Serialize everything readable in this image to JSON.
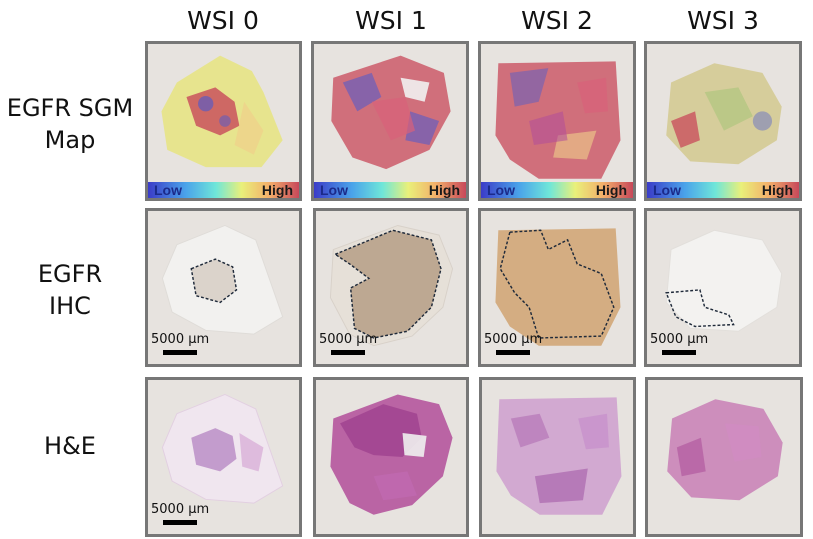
{
  "columns": [
    "WSI 0",
    "WSI 1",
    "WSI 2",
    "WSI 3"
  ],
  "rows": [
    {
      "label_lines": [
        "EGFR SGM",
        "Map"
      ]
    },
    {
      "label_lines": [
        "EGFR",
        "IHC"
      ]
    },
    {
      "label_lines": [
        "H&E"
      ]
    }
  ],
  "colorbar": {
    "low": "Low",
    "high": "High"
  },
  "scalebar": {
    "text": "5000 µm"
  },
  "colors": {
    "panel_bg": "#e7e3df",
    "panel_border": "#777777",
    "ihc_stain": "#c59a6a",
    "he_stain": "#b56ab8",
    "sgm_high": "#c8485a",
    "sgm_low": "#4a5ad0",
    "annotation_line": "#1f2a3a"
  },
  "icons": [
    "scale-bar",
    "colorbar",
    "tissue-section"
  ]
}
